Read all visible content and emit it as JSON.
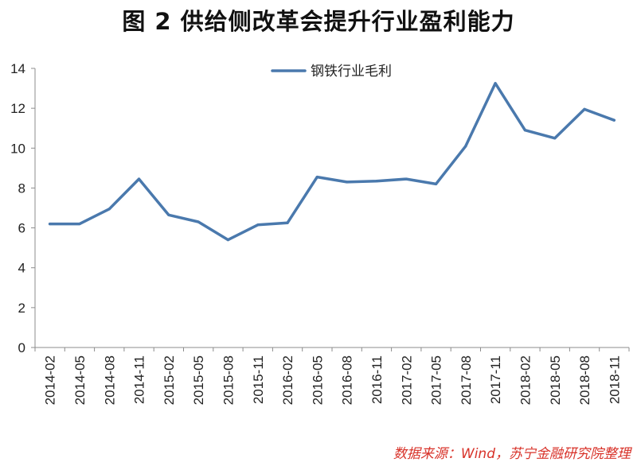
{
  "title": "图 2  供给侧改革会提升行业盈利能力",
  "source": "数据来源：Wind，苏宁金融研究院整理",
  "chart_data": {
    "type": "line",
    "title": "图 2  供给侧改革会提升行业盈利能力",
    "xlabel": "",
    "ylabel": "",
    "categories": [
      "2014-02",
      "2014-05",
      "2014-08",
      "2014-11",
      "2015-02",
      "2015-05",
      "2015-08",
      "2015-11",
      "2016-02",
      "2016-05",
      "2016-08",
      "2016-11",
      "2017-02",
      "2017-05",
      "2017-08",
      "2017-11",
      "2018-02",
      "2018-05",
      "2018-08",
      "2018-11"
    ],
    "series": [
      {
        "name": "钢铁行业毛利",
        "color": "#4a79ad",
        "values": [
          6.2,
          6.2,
          6.95,
          8.45,
          6.65,
          6.3,
          5.4,
          6.15,
          6.25,
          8.55,
          8.3,
          8.35,
          8.45,
          8.2,
          10.1,
          13.25,
          10.9,
          10.5,
          11.95,
          11.4
        ]
      }
    ],
    "ylim": [
      0,
      14
    ],
    "yticks": [
      0,
      2,
      4,
      6,
      8,
      10,
      12,
      14
    ],
    "grid": false,
    "legend": "top-center"
  }
}
